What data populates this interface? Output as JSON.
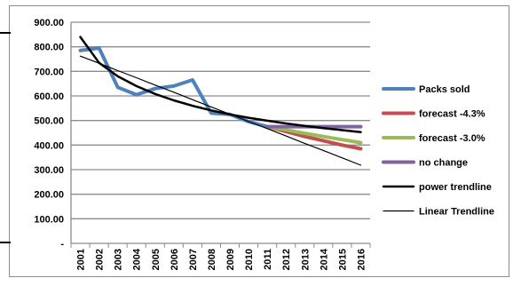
{
  "chart_data": {
    "type": "line",
    "title": "",
    "xlabel": "",
    "ylabel": "",
    "ylim": [
      0,
      900
    ],
    "y_ticks": [
      {
        "value": 900,
        "label": "900.00"
      },
      {
        "value": 800,
        "label": "800.00"
      },
      {
        "value": 700,
        "label": "700.00"
      },
      {
        "value": 600,
        "label": "600.00"
      },
      {
        "value": 500,
        "label": "500.00"
      },
      {
        "value": 400,
        "label": "400.00"
      },
      {
        "value": 300,
        "label": "300.00"
      },
      {
        "value": 200,
        "label": "200.00"
      },
      {
        "value": 100,
        "label": "100.00"
      },
      {
        "value": 0,
        "label": "-"
      }
    ],
    "categories": [
      "2001",
      "2002",
      "2003",
      "2004",
      "2005",
      "2006",
      "2007",
      "2008",
      "2009",
      "2010",
      "2011",
      "2012",
      "2013",
      "2014",
      "2015",
      "2016"
    ],
    "grid": true,
    "legend_position": "right",
    "series": [
      {
        "name": "Packs sold",
        "color": "#4f81bd",
        "width": 4,
        "values": [
          785,
          795,
          635,
          605,
          630,
          640,
          665,
          530,
          525,
          495,
          475,
          null,
          null,
          null,
          null,
          null
        ]
      },
      {
        "name": "forecast -4.3%",
        "color": "#c0504d",
        "width": 4,
        "values": [
          null,
          null,
          null,
          null,
          null,
          null,
          null,
          null,
          null,
          null,
          475,
          455,
          435,
          418,
          400,
          385
        ]
      },
      {
        "name": "forecast -3.0%",
        "color": "#9bbb59",
        "width": 4,
        "values": [
          null,
          null,
          null,
          null,
          null,
          null,
          null,
          null,
          null,
          null,
          475,
          462,
          448,
          435,
          422,
          410
        ]
      },
      {
        "name": "no change",
        "color": "#8064a2",
        "width": 4,
        "values": [
          null,
          null,
          null,
          null,
          null,
          null,
          null,
          null,
          null,
          null,
          475,
          475,
          475,
          475,
          475,
          475
        ]
      },
      {
        "name": "power trendline",
        "color": "#000000",
        "width": 2.5,
        "values": [
          840,
          735,
          680,
          640,
          608,
          582,
          560,
          541,
          525,
          511,
          499,
          488,
          478,
          469,
          461,
          453
        ]
      },
      {
        "name": "Linear Trendline",
        "color": "#000000",
        "width": 1.2,
        "values": [
          762,
          733,
          703,
          674,
          644,
          615,
          585,
          555,
          526,
          496,
          467,
          437,
          407,
          378,
          348,
          318
        ]
      }
    ]
  }
}
